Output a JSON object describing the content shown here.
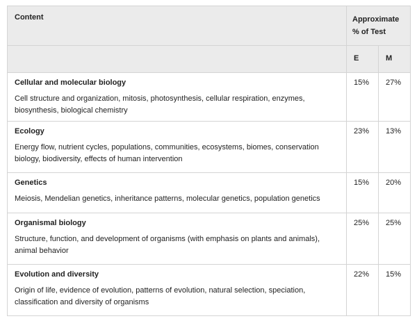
{
  "table": {
    "header": {
      "content": "Content",
      "approximate": "Approximate % of Test",
      "columns": [
        "E",
        "M"
      ]
    },
    "rows": [
      {
        "title": "Cellular and molecular biology",
        "description": "Cell structure and organization, mitosis, photosynthesis, cellular respiration, enzymes, biosynthesis, biological chemistry",
        "e": "15%",
        "m": "27%"
      },
      {
        "title": "Ecology",
        "description": "Energy flow, nutrient cycles, populations, communities, ecosystems, biomes, conservation biology, biodiversity, effects of human intervention",
        "e": "23%",
        "m": "13%"
      },
      {
        "title": "Genetics",
        "description": "Meiosis, Mendelian genetics, inheritance patterns, molecular genetics, population genetics",
        "e": "15%",
        "m": "20%"
      },
      {
        "title": "Organismal biology",
        "description": "Structure, function, and development of organisms (with emphasis on plants and animals), animal behavior",
        "e": "25%",
        "m": "25%"
      },
      {
        "title": "Evolution and diversity",
        "description": "Origin of life, evidence of evolution, patterns of evolution, natural selection, speciation, classification and diversity of organisms",
        "e": "22%",
        "m": "15%"
      }
    ]
  }
}
